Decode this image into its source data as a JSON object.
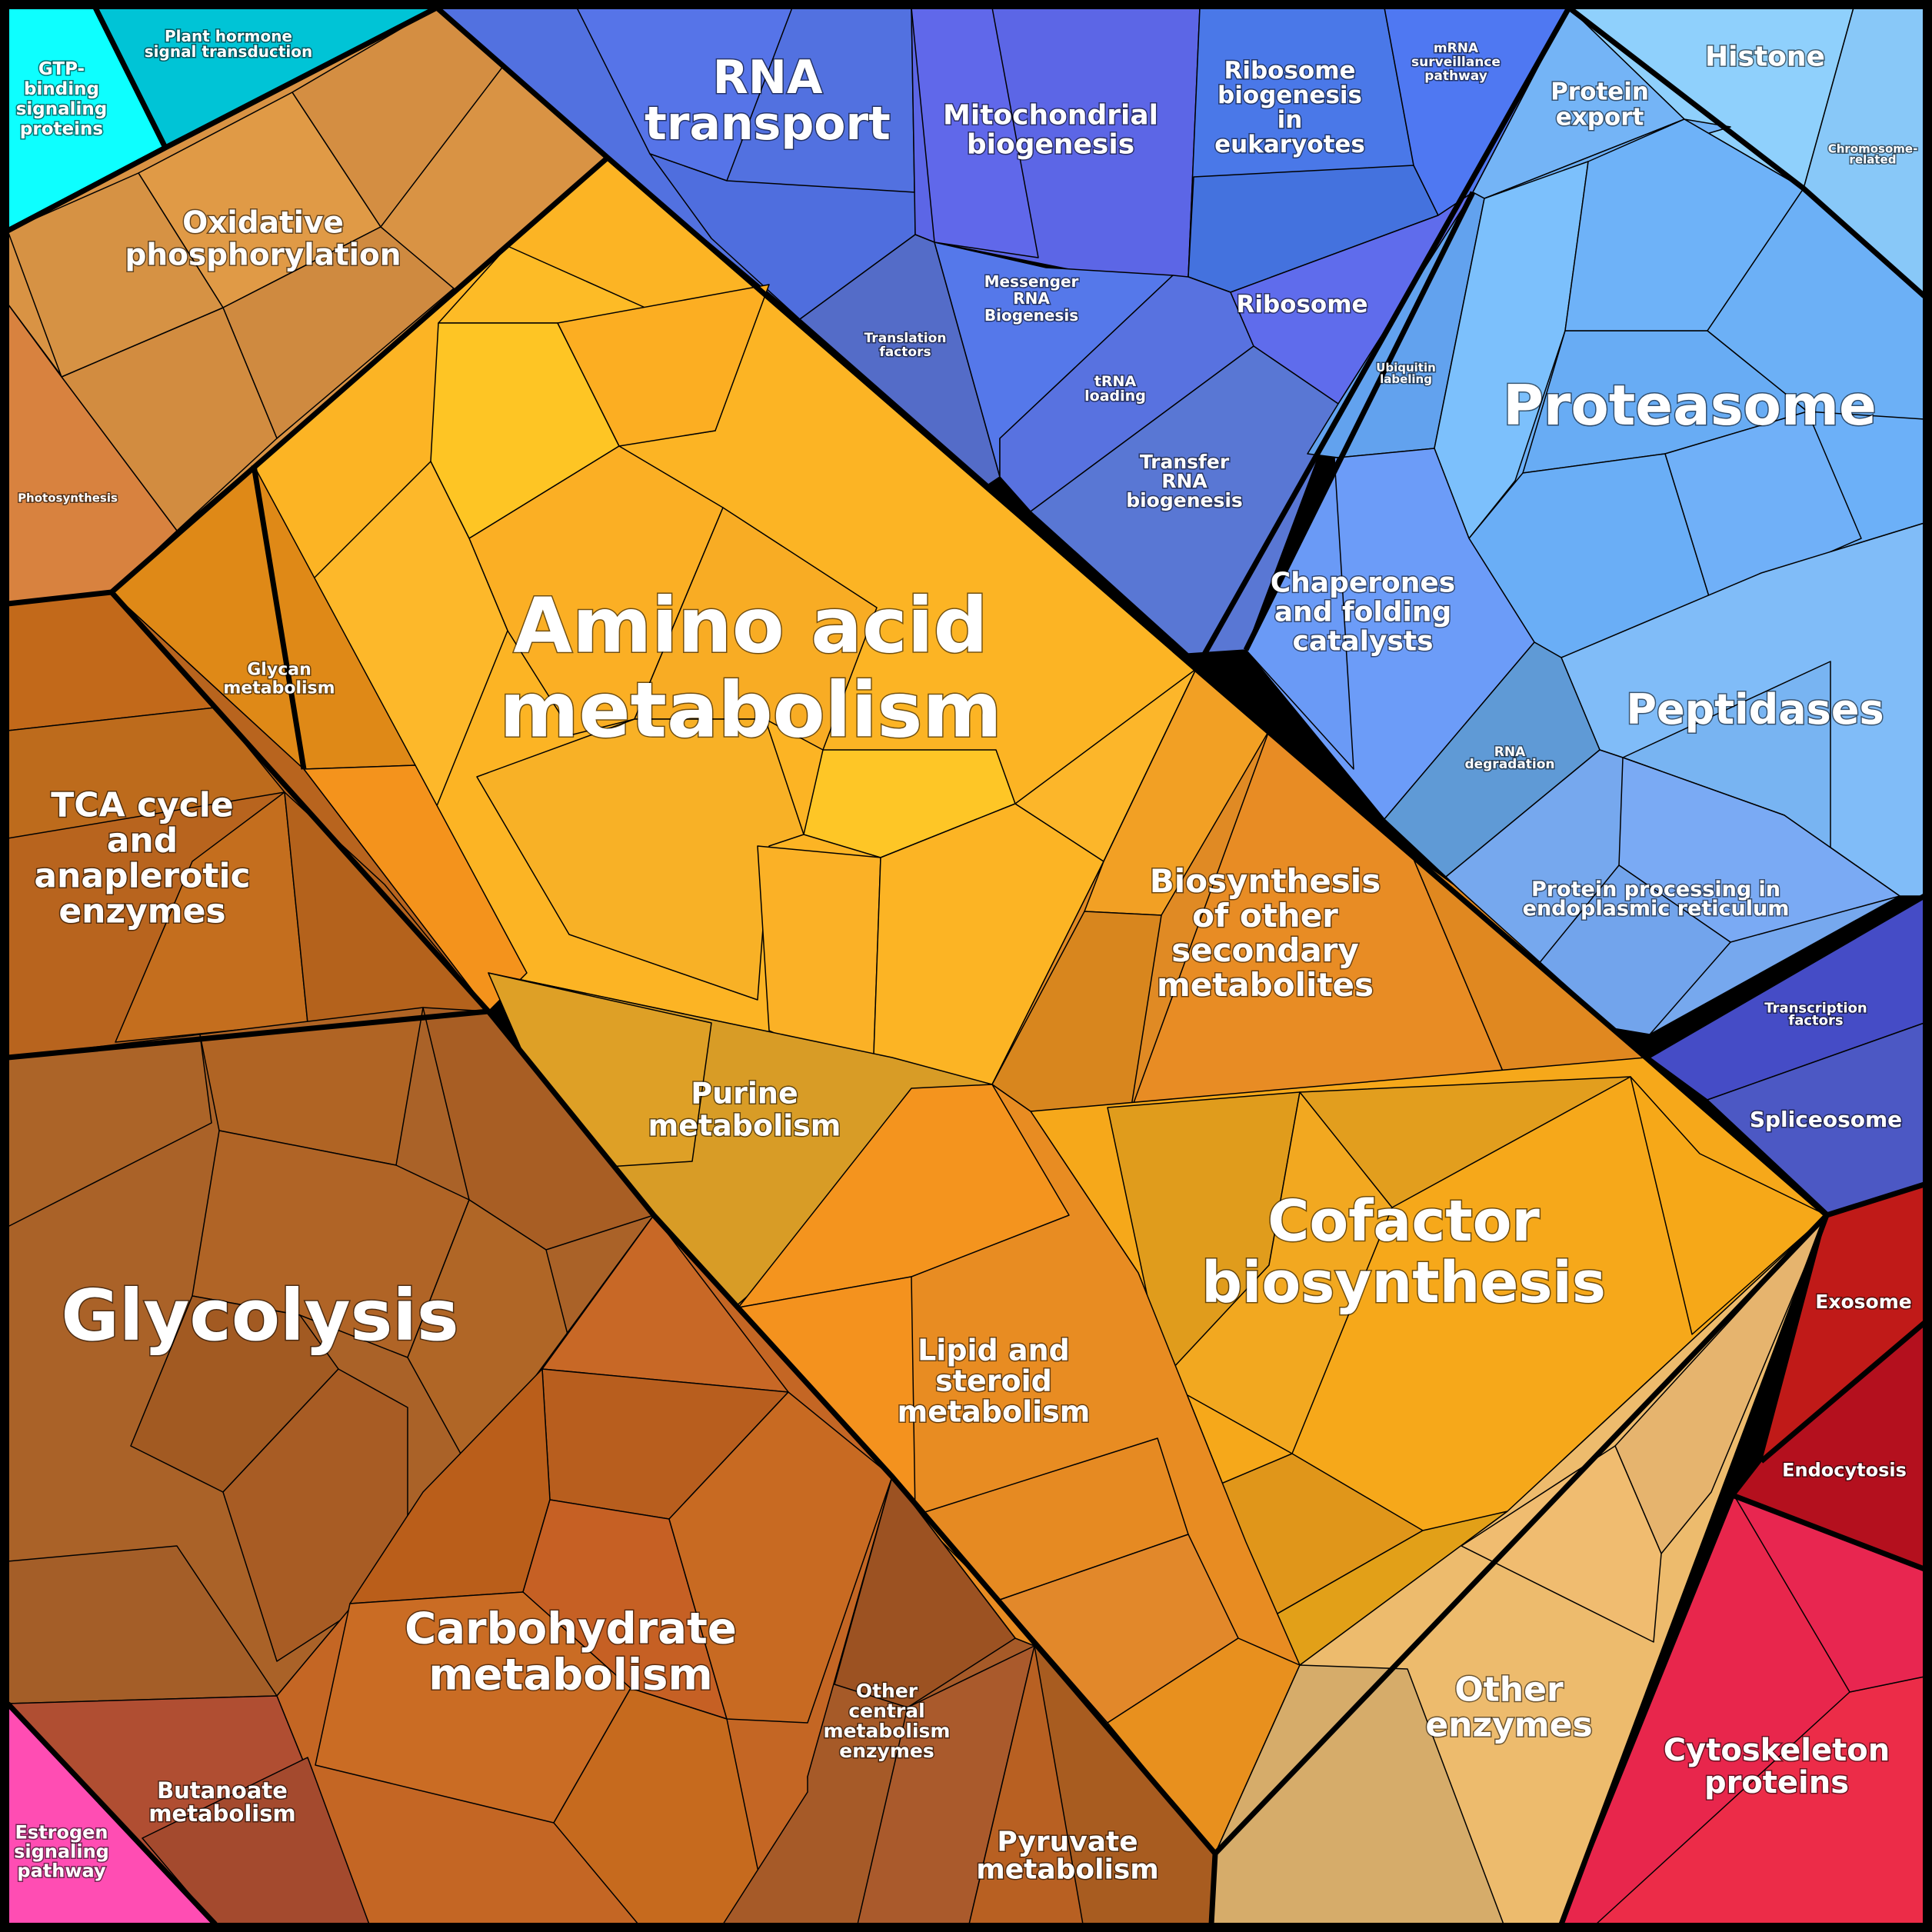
{
  "chart_data": {
    "type": "voronoi-treemap",
    "title": "",
    "description": "Proteomap-style Voronoi treemap of functional categories; area proportional to protein abundance",
    "categories": [
      {
        "name": "GTP-binding signaling proteins",
        "color": "#0dffff"
      },
      {
        "name": "Plant hormone signal transduction",
        "color": "#00c4d6"
      },
      {
        "name": "Oxidative phosphorylation",
        "color": "#d99344"
      },
      {
        "name": "Photosynthesis",
        "color": "#d8823f"
      },
      {
        "name": "RNA transport",
        "color": "#5271e0"
      },
      {
        "name": "Mitochondrial biogenesis",
        "color": "#5c66e6"
      },
      {
        "name": "Ribosome biogenesis in eukaryotes",
        "color": "#4a78e8"
      },
      {
        "name": "mRNA surveillance pathway",
        "color": "#4f78f2"
      },
      {
        "name": "Translation factors",
        "color": "#546cc8"
      },
      {
        "name": "Messenger RNA Biogenesis",
        "color": "#5578ea"
      },
      {
        "name": "tRNA loading",
        "color": "#5872e0"
      },
      {
        "name": "Ribosome",
        "color": "#5f6cec"
      },
      {
        "name": "Transfer RNA biogenesis",
        "color": "#5977d4"
      },
      {
        "name": "Histone",
        "color": "#8fd0fc"
      },
      {
        "name": "Chromosome-related",
        "color": "#88c8f8"
      },
      {
        "name": "Protein export",
        "color": "#72b2f6"
      },
      {
        "name": "Ubiquitin labeling",
        "color": "#62a2ee"
      },
      {
        "name": "Proteasome",
        "color": "#6cb0f8"
      },
      {
        "name": "Chaperones and folding catalysts",
        "color": "#6c9cf8"
      },
      {
        "name": "Peptidases",
        "color": "#80bcf8"
      },
      {
        "name": "RNA degradation",
        "color": "#5f9ad6"
      },
      {
        "name": "Protein processing in endoplasmic reticulum",
        "color": "#76a8ee"
      },
      {
        "name": "Transcription factors",
        "color": "#454cc6"
      },
      {
        "name": "Spliceosome",
        "color": "#4c58c4"
      },
      {
        "name": "Amino acid metabolism",
        "color": "#fcb424"
      },
      {
        "name": "Glycan metabolism",
        "color": "#df8917"
      },
      {
        "name": "Purine metabolism",
        "color": "#d89c26"
      },
      {
        "name": "Biosynthesis of other secondary metabolites",
        "color": "#e08a24"
      },
      {
        "name": "Cofactor biosynthesis",
        "color": "#f6a81a"
      },
      {
        "name": "Lipid and steroid metabolism",
        "color": "#e88c22"
      },
      {
        "name": "TCA cycle and anaplerotic enzymes",
        "color": "#b8641e"
      },
      {
        "name": "Glycolysis",
        "color": "#aa6228"
      },
      {
        "name": "Carbohydrate metabolism",
        "color": "#c46624"
      },
      {
        "name": "Other central metabolism enzymes",
        "color": "#a65a28"
      },
      {
        "name": "Pyruvate metabolism",
        "color": "#b86022"
      },
      {
        "name": "Butanoate metabolism",
        "color": "#b04e32"
      },
      {
        "name": "Estrogen signaling pathway",
        "color": "#ff4db3"
      },
      {
        "name": "Other enzymes",
        "color": "#edbb6d"
      },
      {
        "name": "Exosome",
        "color": "#c01a18"
      },
      {
        "name": "Endocytosis",
        "color": "#b4101e"
      },
      {
        "name": "Cytoskeleton proteins",
        "color": "#e8264c"
      }
    ]
  },
  "labels": {
    "gtp": [
      "GTP-",
      "binding",
      "signaling",
      "proteins"
    ],
    "plant": [
      "Plant hormone",
      "signal transduction"
    ],
    "oxphos": [
      "Oxidative",
      "phosphorylation"
    ],
    "photo": [
      "Photosynthesis"
    ],
    "rnatransport": [
      "RNA",
      "transport"
    ],
    "mito": [
      "Mitochondrial",
      "biogenesis"
    ],
    "ribobio": [
      "Ribosome",
      "biogenesis",
      "in",
      "eukaryotes"
    ],
    "mrnasurv": [
      "mRNA",
      "surveillance",
      "pathway"
    ],
    "transl": [
      "Translation",
      "factors"
    ],
    "mrnabio": [
      "Messenger",
      "RNA",
      "Biogenesis"
    ],
    "trnaload": [
      "tRNA",
      "loading"
    ],
    "ribosome": [
      "Ribosome"
    ],
    "trnabio": [
      "Transfer",
      "RNA",
      "biogenesis"
    ],
    "histone": [
      "Histone"
    ],
    "chromo": [
      "Chromosome-",
      "related"
    ],
    "protexport": [
      "Protein",
      "export"
    ],
    "ubiq": [
      "Ubiquitin",
      "labeling"
    ],
    "proteasome": [
      "Proteasome"
    ],
    "chaperones": [
      "Chaperones",
      "and folding",
      "catalysts"
    ],
    "peptidases": [
      "Peptidases"
    ],
    "rnadeg": [
      "RNA",
      "degradation"
    ],
    "er": [
      "Protein processing in",
      "endoplasmic reticulum"
    ],
    "tf": [
      "Transcription",
      "factors"
    ],
    "splice": [
      "Spliceosome"
    ],
    "amino": [
      "Amino acid",
      "metabolism"
    ],
    "glycan": [
      "Glycan",
      "metabolism"
    ],
    "purine": [
      "Purine",
      "metabolism"
    ],
    "biosec": [
      "Biosynthesis",
      "of other",
      "secondary",
      "metabolites"
    ],
    "cofactor": [
      "Cofactor",
      "biosynthesis"
    ],
    "lipid": [
      "Lipid and",
      "steroid",
      "metabolism"
    ],
    "tca": [
      "TCA cycle",
      "and",
      "anaplerotic",
      "enzymes"
    ],
    "glycolysis": [
      "Glycolysis"
    ],
    "carb": [
      "Carbohydrate",
      "metabolism"
    ],
    "othercentral": [
      "Other",
      "central",
      "metabolism",
      "enzymes"
    ],
    "pyruvate": [
      "Pyruvate",
      "metabolism"
    ],
    "butanoate": [
      "Butanoate",
      "metabolism"
    ],
    "estrogen": [
      "Estrogen",
      "signaling",
      "pathway"
    ],
    "otherenz": [
      "Other",
      "enzymes"
    ],
    "exosome": [
      "Exosome"
    ],
    "endo": [
      "Endocytosis"
    ],
    "cyto": [
      "Cytoskeleton",
      "proteins"
    ]
  }
}
